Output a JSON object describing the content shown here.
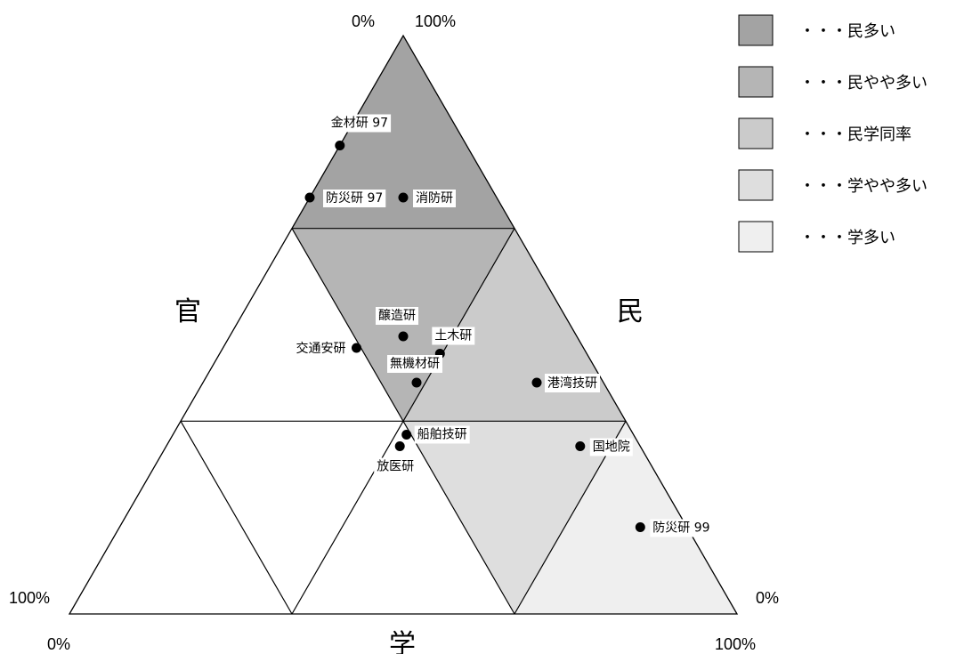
{
  "chart_data": {
    "type": "scatter",
    "subtype": "ternary",
    "axes": {
      "left": "官",
      "right": "民",
      "bottom": "学"
    },
    "corner_labels": {
      "top_left": "0%",
      "top_right": "100%",
      "left": "100%",
      "right": "0%",
      "bottom_left": "0%",
      "bottom_right": "100%"
    },
    "regions": [
      {
        "name": "・・・民多い",
        "color": "#a3a3a3"
      },
      {
        "name": "・・・民やや多い",
        "color": "#b5b5b5"
      },
      {
        "name": "・・・民学同率",
        "color": "#cbcbcb"
      },
      {
        "name": "・・・学やや多い",
        "color": "#dedede"
      },
      {
        "name": "・・・学多い",
        "color": "#efefef"
      }
    ],
    "points": [
      {
        "label": "金材研 97",
        "min": 0.81,
        "gaku": 0.0,
        "kan": 0.19
      },
      {
        "label": "防災研 97",
        "min": 0.72,
        "gaku": 0.0,
        "kan": 0.28
      },
      {
        "label": "消防研",
        "min": 0.72,
        "gaku": 0.14,
        "kan": 0.14
      },
      {
        "label": "醸造研",
        "min": 0.48,
        "gaku": 0.26,
        "kan": 0.26
      },
      {
        "label": "土木研",
        "min": 0.45,
        "gaku": 0.33,
        "kan": 0.22
      },
      {
        "label": "交通安研",
        "min": 0.46,
        "gaku": 0.2,
        "kan": 0.34
      },
      {
        "label": "無機材研",
        "min": 0.4,
        "gaku": 0.32,
        "kan": 0.28
      },
      {
        "label": "港湾技研",
        "min": 0.4,
        "gaku": 0.5,
        "kan": 0.1
      },
      {
        "label": "船舶技研",
        "min": 0.31,
        "gaku": 0.35,
        "kan": 0.34
      },
      {
        "label": "放医研",
        "min": 0.29,
        "gaku": 0.35,
        "kan": 0.36
      },
      {
        "label": "国地院",
        "min": 0.29,
        "gaku": 0.62,
        "kan": 0.09
      },
      {
        "label": "防災研 99",
        "min": 0.15,
        "gaku": 0.78,
        "kan": 0.07
      }
    ]
  }
}
